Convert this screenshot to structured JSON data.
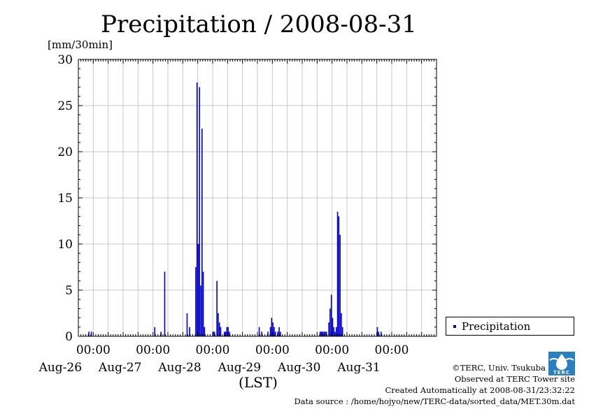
{
  "page": {
    "title": "Precipitation / 2008-08-31",
    "unit_label": "[mm/30min]",
    "x_axis_title": "(LST)"
  },
  "legend": {
    "label": "Precipitation"
  },
  "credits": {
    "copyright": "©TERC, Univ. Tsukuba",
    "observed": "Observed at TERC Tower site",
    "created": "Created Automatically at 2008-08-31/23:32:22",
    "source": "Data source : /home/hojyo/new/TERC-data/sorted_data/MET.30m.dat"
  },
  "logo": {
    "icon": "terc-logo-icon",
    "text": "TERC",
    "color": "#2a7fc1"
  },
  "chart_data": {
    "type": "bar",
    "title": "Precipitation / 2008-08-31",
    "ylabel": "[mm/30min]",
    "xlabel": "(LST)",
    "ylim": [
      0,
      30
    ],
    "yticks": [
      0,
      5,
      10,
      15,
      20,
      25,
      30
    ],
    "xlim_days": [
      -0.25,
      5.75
    ],
    "day_tick_labels": [
      "Aug-26",
      "Aug-27",
      "Aug-28",
      "Aug-29",
      "Aug-30",
      "Aug-31"
    ],
    "midnight_label": "00:00",
    "grid": true,
    "bar_color": "#0000cc",
    "series": [
      {
        "name": "Precipitation",
        "points": [
          {
            "x": "Aug-25 22:00",
            "y": 0.5
          },
          {
            "x": "Aug-25 23:00",
            "y": 0.5
          },
          {
            "x": "Aug-27 00:30",
            "y": 1.0
          },
          {
            "x": "Aug-27 03:00",
            "y": 0.5
          },
          {
            "x": "Aug-27 04:30",
            "y": 7.0
          },
          {
            "x": "Aug-27 13:30",
            "y": 2.5
          },
          {
            "x": "Aug-27 14:30",
            "y": 1.0
          },
          {
            "x": "Aug-27 17:00",
            "y": 7.5
          },
          {
            "x": "Aug-27 17:30",
            "y": 27.5
          },
          {
            "x": "Aug-27 18:00",
            "y": 10.0
          },
          {
            "x": "Aug-27 18:30",
            "y": 27.0
          },
          {
            "x": "Aug-27 19:00",
            "y": 5.5
          },
          {
            "x": "Aug-27 19:30",
            "y": 22.5
          },
          {
            "x": "Aug-27 20:00",
            "y": 7.0
          },
          {
            "x": "Aug-27 20:30",
            "y": 1.0
          },
          {
            "x": "Aug-28 00:00",
            "y": 0.5
          },
          {
            "x": "Aug-28 00:30",
            "y": 0.5
          },
          {
            "x": "Aug-28 01:30",
            "y": 6.0
          },
          {
            "x": "Aug-28 02:00",
            "y": 2.5
          },
          {
            "x": "Aug-28 02:30",
            "y": 1.5
          },
          {
            "x": "Aug-28 03:00",
            "y": 1.0
          },
          {
            "x": "Aug-28 04:30",
            "y": 0.5
          },
          {
            "x": "Aug-28 05:00",
            "y": 0.5
          },
          {
            "x": "Aug-28 05:30",
            "y": 1.0
          },
          {
            "x": "Aug-28 06:00",
            "y": 1.0
          },
          {
            "x": "Aug-28 06:30",
            "y": 0.5
          },
          {
            "x": "Aug-28 18:30",
            "y": 1.0
          },
          {
            "x": "Aug-28 19:30",
            "y": 0.5
          },
          {
            "x": "Aug-28 22:00",
            "y": 0.5
          },
          {
            "x": "Aug-28 23:00",
            "y": 1.0
          },
          {
            "x": "Aug-28 23:30",
            "y": 2.0
          },
          {
            "x": "Aug-29 00:00",
            "y": 1.5
          },
          {
            "x": "Aug-29 00:30",
            "y": 1.0
          },
          {
            "x": "Aug-29 01:00",
            "y": 0.5
          },
          {
            "x": "Aug-29 02:00",
            "y": 0.5
          },
          {
            "x": "Aug-29 02:30",
            "y": 1.0
          },
          {
            "x": "Aug-29 03:00",
            "y": 0.5
          },
          {
            "x": "Aug-29 19:00",
            "y": 0.5
          },
          {
            "x": "Aug-29 19:30",
            "y": 0.5
          },
          {
            "x": "Aug-29 20:00",
            "y": 0.5
          },
          {
            "x": "Aug-29 20:30",
            "y": 0.5
          },
          {
            "x": "Aug-29 21:00",
            "y": 0.5
          },
          {
            "x": "Aug-29 21:30",
            "y": 0.5
          },
          {
            "x": "Aug-29 22:30",
            "y": 1.5
          },
          {
            "x": "Aug-29 23:00",
            "y": 3.0
          },
          {
            "x": "Aug-29 23:30",
            "y": 4.5
          },
          {
            "x": "Aug-30 00:00",
            "y": 2.0
          },
          {
            "x": "Aug-30 00:30",
            "y": 1.0
          },
          {
            "x": "Aug-30 01:00",
            "y": 0.5
          },
          {
            "x": "Aug-30 01:30",
            "y": 1.0
          },
          {
            "x": "Aug-30 02:00",
            "y": 13.5
          },
          {
            "x": "Aug-30 02:30",
            "y": 13.0
          },
          {
            "x": "Aug-30 03:00",
            "y": 11.0
          },
          {
            "x": "Aug-30 03:30",
            "y": 2.5
          },
          {
            "x": "Aug-30 04:00",
            "y": 1.0
          },
          {
            "x": "Aug-30 18:00",
            "y": 1.0
          },
          {
            "x": "Aug-30 18:30",
            "y": 0.5
          },
          {
            "x": "Aug-30 19:30",
            "y": 0.5
          }
        ]
      }
    ]
  }
}
